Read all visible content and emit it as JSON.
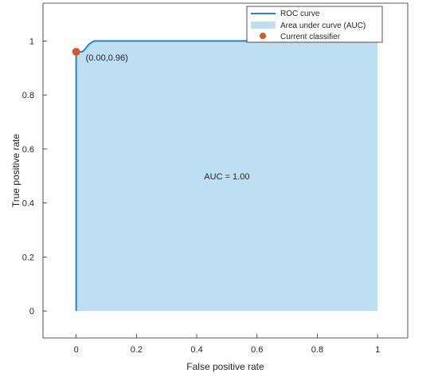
{
  "chart_data": {
    "type": "line",
    "title": "",
    "xlabel": "False positive rate",
    "ylabel": "True positive rate",
    "xlim": [
      -0.11,
      1.1
    ],
    "ylim": [
      -0.1,
      1.14
    ],
    "xticks": [
      0,
      0.2,
      0.4,
      0.6,
      0.8,
      1
    ],
    "xtick_labels": [
      "0",
      "0.2",
      "0.4",
      "0.6",
      "0.8",
      "1"
    ],
    "yticks": [
      0,
      0.2,
      0.4,
      0.6,
      0.8,
      1
    ],
    "ytick_labels": [
      "0",
      "0.2",
      "0.4",
      "0.6",
      "0.8",
      "1"
    ],
    "grid": false,
    "legend_position": "top-right",
    "series": [
      {
        "name": "ROC curve",
        "color": "#1f86d0",
        "x": [
          0,
          0,
          0.005,
          0.02,
          0.03,
          0.04,
          0.045,
          0.06,
          0.1,
          0.2,
          0.4,
          0.6,
          0.8,
          1
        ],
        "y": [
          0,
          0.96,
          0.96,
          0.96,
          0.97,
          0.985,
          0.99,
          1,
          1,
          1,
          1,
          1,
          1,
          1
        ]
      },
      {
        "name": "Area under curve (AUC)",
        "type": "area",
        "color": "#bddff1"
      },
      {
        "name": "Current classifier",
        "type": "scatter",
        "color": "#d8572a",
        "x": [
          0
        ],
        "y": [
          0.96
        ]
      }
    ],
    "annotations": [
      {
        "text": "(0.00,0.96)",
        "x": 0,
        "y": 0.96
      },
      {
        "text": "AUC = 1.00",
        "x": 0.5,
        "y": 0.5
      }
    ]
  }
}
